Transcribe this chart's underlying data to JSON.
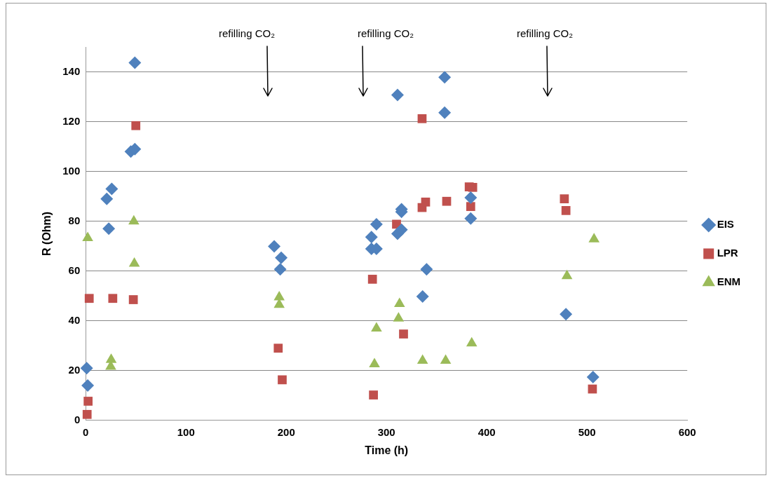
{
  "chart_data": {
    "type": "scatter",
    "xlabel": "Time (h)",
    "ylabel": "R (Ohm)",
    "xlim": [
      0,
      600
    ],
    "xticks": [
      0,
      100,
      200,
      300,
      400,
      500,
      600
    ],
    "ylim": [
      0,
      150
    ],
    "yticks": [
      0,
      20,
      40,
      60,
      80,
      100,
      120,
      140
    ],
    "grid": "y",
    "legend": "right",
    "annotations": [
      "refilling CO₂",
      "refilling CO₂",
      "refilling CO₂"
    ],
    "series": [
      {
        "name": "EIS",
        "color": "#4f81bd",
        "marker": "diamond",
        "x": [
          49,
          45,
          49,
          26,
          21,
          23,
          1,
          2,
          188,
          195,
          194,
          285,
          290,
          285,
          290,
          311,
          311,
          315,
          315,
          315,
          358,
          358,
          340,
          336,
          384,
          384,
          479,
          506
        ],
        "values": [
          143.7,
          108,
          109,
          93,
          89,
          77,
          21,
          14,
          69.9,
          65.3,
          60.7,
          73.6,
          78.8,
          68.9,
          68.9,
          130.7,
          75,
          76.6,
          83.8,
          84.8,
          137.8,
          123.6,
          60.7,
          49.8,
          89.5,
          81.1,
          42.7,
          17.4
        ]
      },
      {
        "name": "LPR",
        "color": "#c0504d",
        "marker": "square",
        "x": [
          50,
          3.5,
          27,
          47.5,
          2.4,
          1.4,
          286,
          287,
          192,
          196,
          335.5,
          310,
          335.5,
          339,
          360,
          382.5,
          386,
          384,
          317,
          477.4,
          479,
          505.4
        ],
        "values": [
          118.4,
          49,
          49,
          48.5,
          7.7,
          2.4,
          56.7,
          10.2,
          29,
          16.3,
          121.2,
          78.8,
          85.5,
          87.7,
          88,
          93.8,
          93.6,
          85.9,
          34.7,
          89,
          84.3,
          12.6
        ]
      },
      {
        "name": "ENM",
        "color": "#9bbb59",
        "marker": "triangle",
        "x": [
          2,
          48,
          48.5,
          25.4,
          25,
          193,
          193,
          290,
          288,
          313,
          312,
          336,
          359,
          385,
          507,
          480
        ],
        "values": [
          73.3,
          80,
          63,
          24.4,
          21.6,
          49.5,
          46.5,
          37,
          22.6,
          46.8,
          41,
          24,
          24,
          31,
          72.8,
          58
        ]
      }
    ]
  }
}
